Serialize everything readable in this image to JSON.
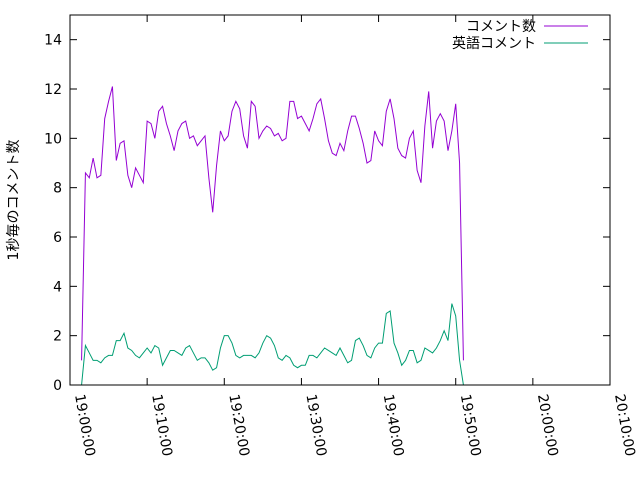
{
  "chart_data": {
    "type": "line",
    "title": "",
    "xlabel": "",
    "ylabel": "1秒毎のコメント数",
    "xlim": [
      "19:00:00",
      "20:10:00"
    ],
    "ylim": [
      0,
      15
    ],
    "x_ticks": [
      "19:00:00",
      "19:10:00",
      "19:20:00",
      "19:30:00",
      "19:40:00",
      "19:50:00",
      "20:00:00",
      "20:10:00"
    ],
    "y_ticks": [
      0,
      2,
      4,
      6,
      8,
      10,
      12,
      14
    ],
    "grid": false,
    "legend_position": "top-right",
    "x_step_seconds": 30,
    "x_start": "19:00:00",
    "series": [
      {
        "name": "コメント数",
        "color": "#9400d3",
        "values": [
          1.0,
          8.6,
          8.4,
          9.2,
          8.4,
          8.5,
          10.8,
          11.5,
          12.1,
          9.1,
          9.8,
          9.9,
          8.5,
          8.0,
          8.8,
          8.5,
          8.2,
          10.7,
          10.6,
          10.0,
          11.1,
          11.3,
          10.6,
          10.1,
          9.5,
          10.3,
          10.6,
          10.7,
          10.0,
          10.1,
          9.7,
          9.9,
          10.1,
          8.4,
          7.0,
          8.9,
          10.3,
          9.9,
          10.1,
          11.1,
          11.5,
          11.2,
          10.1,
          9.6,
          11.5,
          11.3,
          10.0,
          10.3,
          10.5,
          10.4,
          10.1,
          10.2,
          9.9,
          10.0,
          11.5,
          11.5,
          10.8,
          10.9,
          10.6,
          10.3,
          10.8,
          11.4,
          11.6,
          10.8,
          9.9,
          9.4,
          9.3,
          9.8,
          9.5,
          10.3,
          10.9,
          10.9,
          10.4,
          9.8,
          9.0,
          9.1,
          10.3,
          9.9,
          9.7,
          11.1,
          11.6,
          10.8,
          9.6,
          9.3,
          9.2,
          10.0,
          10.3,
          8.7,
          8.2,
          10.5,
          11.9,
          9.6,
          10.7,
          11.0,
          10.7,
          9.5,
          10.3,
          11.4,
          9.0,
          1.0
        ]
      },
      {
        "name": "英語コメント",
        "color": "#009e73",
        "values": [
          0.0,
          1.6,
          1.3,
          1.0,
          1.0,
          0.9,
          1.1,
          1.2,
          1.2,
          1.8,
          1.8,
          2.1,
          1.5,
          1.4,
          1.2,
          1.1,
          1.3,
          1.5,
          1.3,
          1.6,
          1.5,
          0.8,
          1.1,
          1.4,
          1.4,
          1.3,
          1.2,
          1.5,
          1.6,
          1.3,
          1.0,
          1.1,
          1.1,
          0.9,
          0.6,
          0.7,
          1.5,
          2.0,
          2.0,
          1.7,
          1.2,
          1.1,
          1.2,
          1.2,
          1.2,
          1.1,
          1.3,
          1.7,
          2.0,
          1.9,
          1.6,
          1.1,
          1.0,
          1.2,
          1.1,
          0.8,
          0.7,
          0.8,
          0.8,
          1.2,
          1.2,
          1.1,
          1.3,
          1.5,
          1.4,
          1.3,
          1.2,
          1.5,
          1.2,
          0.9,
          1.0,
          1.8,
          1.9,
          1.6,
          1.2,
          1.1,
          1.5,
          1.7,
          1.7,
          2.9,
          3.0,
          1.7,
          1.3,
          0.8,
          1.0,
          1.4,
          1.4,
          0.9,
          1.0,
          1.5,
          1.4,
          1.3,
          1.5,
          1.8,
          2.2,
          1.8,
          3.3,
          2.8,
          1.0,
          0.0
        ]
      }
    ]
  }
}
